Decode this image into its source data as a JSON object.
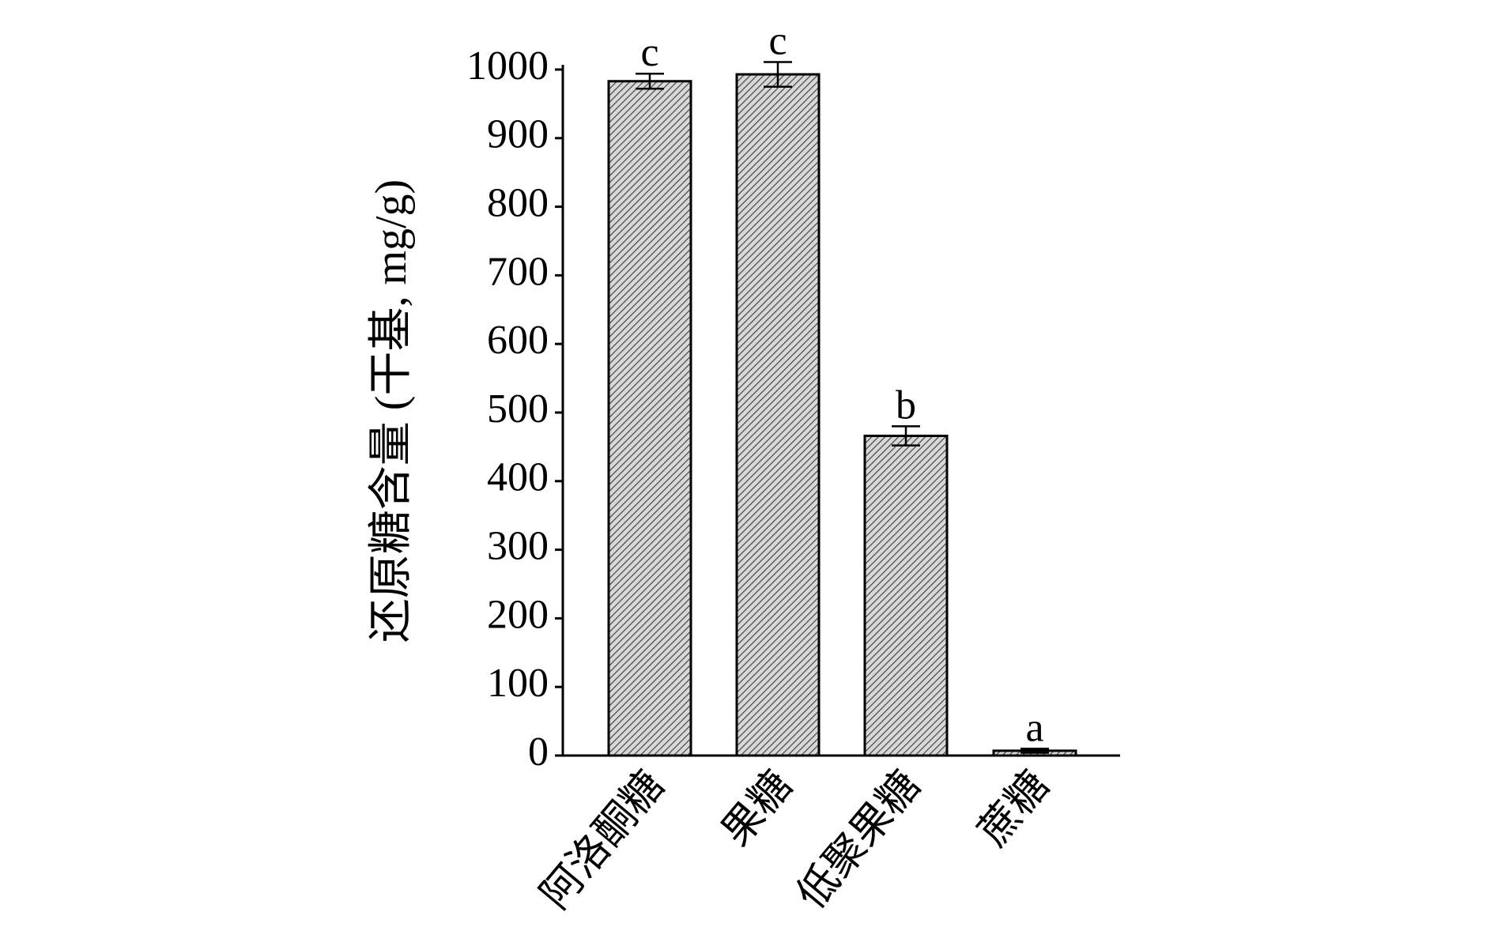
{
  "chart_data": {
    "type": "bar",
    "y_label": "还原糖含量 (干基, mg/g)",
    "categories": [
      "阿洛酮糖",
      "果糖",
      "低聚果糖",
      "蔗糖"
    ],
    "values": [
      983,
      993,
      466,
      7
    ],
    "errors": [
      11,
      18,
      14,
      3
    ],
    "labels": [
      "c",
      "c",
      "b",
      "a"
    ],
    "color": "#a8a8a8",
    "ylim": [
      0,
      1000
    ],
    "yticks": [
      0,
      100,
      200,
      300,
      400,
      500,
      600,
      700,
      800,
      900,
      1000
    ]
  }
}
